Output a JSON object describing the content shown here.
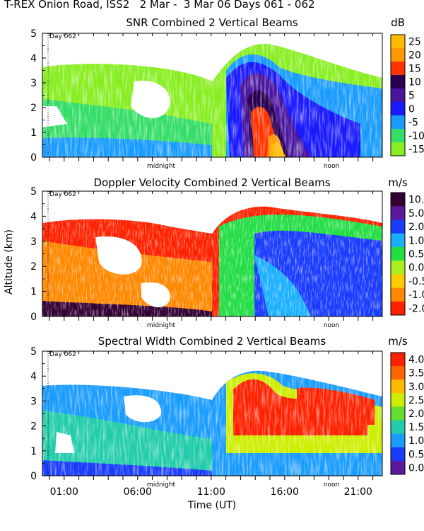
{
  "figure": {
    "title": "T-REX Onion Road, ISS2   2 Mar -  3 Mar 06 Days 061 - 062",
    "ylabel": "Altitude (km)",
    "xlabel": "Time (UT)",
    "day_marker": "Day 062",
    "midnight_label": "midnight",
    "noon_label": "noon"
  },
  "chart_data": [
    {
      "type": "heatmap",
      "title": "SNR Combined 2 Vertical Beams",
      "unit": "dB",
      "ylabel": "Altitude (km)",
      "xlabel": "Time (UT)",
      "ylim": [
        0,
        5
      ],
      "yticks": [
        "0",
        "1",
        "2",
        "3",
        "4",
        "5"
      ],
      "colorbar": {
        "labels": [
          "25",
          "20",
          "15",
          "10",
          "5",
          "0",
          "-5",
          "-10",
          "-15"
        ],
        "colors": [
          "#ffbb00",
          "#ff9900",
          "#ff3300",
          "#2a0050",
          "#4a16a0",
          "#1a1aff",
          "#1a9cff",
          "#33dd66",
          "#88ee22"
        ]
      }
    },
    {
      "type": "heatmap",
      "title": "Doppler Velocity Combined 2 Vertical Beams",
      "unit": "m/s",
      "ylabel": "Altitude (km)",
      "xlabel": "Time (UT)",
      "ylim": [
        0,
        5
      ],
      "yticks": [
        "0",
        "1",
        "2",
        "3",
        "4",
        "5"
      ],
      "colorbar": {
        "labels": [
          "10.0",
          "5.0",
          "2.0",
          "1.0",
          "0.5",
          "0.0",
          "-0.5",
          "-1.0",
          "-2.0"
        ],
        "colors": [
          "#330033",
          "#5a1a9a",
          "#1a3cff",
          "#1ab0ff",
          "#22dd44",
          "#aaee22",
          "#ffcc00",
          "#ff8800",
          "#ff2200"
        ]
      }
    },
    {
      "type": "heatmap",
      "title": "Spectral Width Combined 2 Vertical Beams",
      "unit": "m/s",
      "ylabel": "Altitude (km)",
      "xlabel": "Time (UT)",
      "ylim": [
        0,
        5
      ],
      "yticks": [
        "0",
        "1",
        "2",
        "3",
        "4",
        "5"
      ],
      "xticks": [
        "01:00",
        "06:00",
        "11:00",
        "16:00",
        "21:00"
      ],
      "colorbar": {
        "labels": [
          "4.0",
          "3.5",
          "3.0",
          "2.5",
          "2.0",
          "1.5",
          "1.0",
          "0.5",
          "0.0"
        ],
        "colors": [
          "#ff2200",
          "#ff6600",
          "#ffbb00",
          "#ccee00",
          "#66dd33",
          "#22ccaa",
          "#1a9cff",
          "#1a3cff",
          "#5a1a9a"
        ]
      }
    }
  ]
}
